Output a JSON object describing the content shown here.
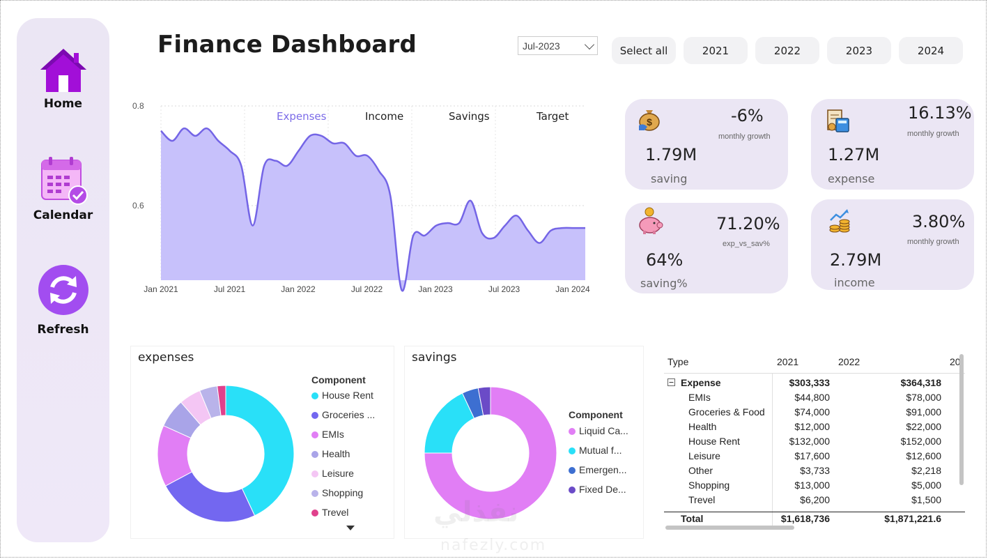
{
  "sidebar": {
    "items": [
      {
        "label": "Home"
      },
      {
        "label": "Calendar"
      },
      {
        "label": "Refresh"
      }
    ]
  },
  "header": {
    "title": "Finance Dashboard",
    "month_selected": "Jul-2023",
    "year_buttons": [
      "Select all",
      "2021",
      "2022",
      "2023",
      "2024"
    ]
  },
  "line_chart": {
    "legend": [
      {
        "label": "Expenses",
        "color": "#7b6be8"
      },
      {
        "label": "Income",
        "color": "#222222"
      },
      {
        "label": "Savings",
        "color": "#222222"
      },
      {
        "label": "Target",
        "color": "#222222"
      }
    ],
    "y_ticks": [
      "0.8",
      "0.6"
    ],
    "x_ticks": [
      "Jan 2021",
      "Jul 2021",
      "Jan 2022",
      "Jul 2022",
      "Jan 2023",
      "Jul 2023",
      "Jan 2024"
    ]
  },
  "kpis": [
    {
      "value": "1.79M",
      "pct": "-6%",
      "sub": "monthly growth",
      "label": "saving",
      "icon": "money-bag-icon"
    },
    {
      "value": "1.27M",
      "pct": "16.13%",
      "sub": "monthly growth",
      "label": "expense",
      "icon": "receipt-calculator-icon"
    },
    {
      "value": "64%",
      "pct": "71.20%",
      "sub": "exp_vs_sav%",
      "label": "saving%",
      "icon": "piggy-bank-icon"
    },
    {
      "value": "2.79M",
      "pct": "3.80%",
      "sub": "monthly growth",
      "label": "income",
      "icon": "coins-growth-icon"
    }
  ],
  "expenses_panel": {
    "title": "expenses",
    "legend_title": "Component",
    "legend": [
      {
        "label": "House Rent",
        "color": "#29e0f8"
      },
      {
        "label": "Groceries ...",
        "color": "#7367f0"
      },
      {
        "label": "EMIs",
        "color": "#e17ef5"
      },
      {
        "label": "Health",
        "color": "#a9a4e8"
      },
      {
        "label": "Leisure",
        "color": "#f4c6f4"
      },
      {
        "label": "Shopping",
        "color": "#b9b3ea"
      },
      {
        "label": "Trevel",
        "color": "#e0418c"
      }
    ]
  },
  "savings_panel": {
    "title": "savings",
    "legend_title": "Component",
    "legend": [
      {
        "label": "Liquid Ca...",
        "color": "#e17ef5"
      },
      {
        "label": "Mutual f...",
        "color": "#29e0f8"
      },
      {
        "label": "Emergen...",
        "color": "#3d6fd1"
      },
      {
        "label": "Fixed De...",
        "color": "#6b4bc7"
      }
    ]
  },
  "table": {
    "headers": [
      "Type",
      "2021",
      "2022",
      "20"
    ],
    "group": {
      "label": "Expense",
      "v2021": "$303,333",
      "v2022": "$364,318"
    },
    "rows": [
      {
        "label": "EMIs",
        "v2021": "$44,800",
        "v2022": "$78,000"
      },
      {
        "label": "Groceries & Food",
        "v2021": "$74,000",
        "v2022": "$91,000"
      },
      {
        "label": "Health",
        "v2021": "$12,000",
        "v2022": "$22,000"
      },
      {
        "label": "House Rent",
        "v2021": "$132,000",
        "v2022": "$152,000"
      },
      {
        "label": "Leisure",
        "v2021": "$17,600",
        "v2022": "$12,600"
      },
      {
        "label": "Other",
        "v2021": "$3,733",
        "v2022": "$2,218"
      },
      {
        "label": "Shopping",
        "v2021": "$13,000",
        "v2022": "$5,000"
      },
      {
        "label": "Trevel",
        "v2021": "$6,200",
        "v2022": "$1,500"
      }
    ],
    "total": {
      "label": "Total",
      "v2021": "$1,618,736",
      "v2022": "$1,871,221.6"
    }
  },
  "watermark": {
    "ar": "نفذلي",
    "en": "nafezly.com"
  },
  "chart_data": [
    {
      "type": "area",
      "x": [
        "2021-01",
        "2021-02",
        "2021-03",
        "2021-04",
        "2021-05",
        "2021-06",
        "2021-07",
        "2021-08",
        "2021-09",
        "2021-10",
        "2021-11",
        "2021-12",
        "2022-01",
        "2022-02",
        "2022-03",
        "2022-04",
        "2022-05",
        "2022-06",
        "2022-07",
        "2022-08",
        "2022-09",
        "2022-10",
        "2022-11",
        "2022-12",
        "2023-01",
        "2023-02",
        "2023-03",
        "2023-04",
        "2023-05",
        "2023-06",
        "2023-07",
        "2023-08",
        "2023-09",
        "2023-10",
        "2023-11",
        "2023-12",
        "2024-01",
        "2024-02"
      ],
      "series": [
        {
          "name": "Expenses",
          "values": [
            0.75,
            0.73,
            0.755,
            0.74,
            0.755,
            0.73,
            0.71,
            0.68,
            0.56,
            0.68,
            0.69,
            0.68,
            0.71,
            0.74,
            0.74,
            0.725,
            0.725,
            0.7,
            0.7,
            0.67,
            0.62,
            0.43,
            0.54,
            0.54,
            0.56,
            0.565,
            0.565,
            0.61,
            0.545,
            0.535,
            0.56,
            0.58,
            0.55,
            0.525,
            0.55,
            0.555,
            0.555,
            0.555
          ]
        }
      ],
      "title": "",
      "xlabel": "",
      "ylabel": "",
      "y_ticks": [
        0.6,
        0.8
      ],
      "x_ticks": [
        "Jan 2021",
        "Jul 2021",
        "Jan 2022",
        "Jul 2022",
        "Jan 2023",
        "Jul 2023",
        "Jan 2024"
      ]
    },
    {
      "type": "pie",
      "title": "expenses",
      "categories": [
        "House Rent",
        "Groceries ...",
        "EMIs",
        "Health",
        "Leisure",
        "Shopping",
        "Trevel"
      ],
      "values": [
        40.8,
        22.9,
        13.8,
        6.5,
        4.9,
        4.0,
        1.9
      ]
    },
    {
      "type": "pie",
      "title": "savings",
      "categories": [
        "Liquid Ca...",
        "Mutual f...",
        "Emergen...",
        "Fixed De..."
      ],
      "values": [
        75,
        18,
        4,
        3
      ]
    }
  ]
}
